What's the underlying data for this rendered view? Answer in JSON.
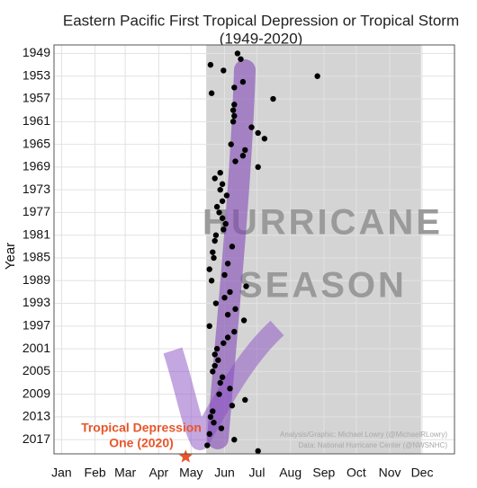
{
  "chart_data": {
    "type": "scatter",
    "title": [
      "Eastern Pacific First Tropical Depression or Tropical Storm",
      "(1949-2020)"
    ],
    "y_label": "Year",
    "x": [
      164,
      167,
      139,
      151,
      238,
      169,
      161,
      140,
      197,
      161,
      160,
      161,
      160,
      177,
      183,
      189,
      158,
      171,
      169,
      162,
      183,
      148,
      143,
      150,
      148,
      154,
      150,
      145,
      147,
      150,
      153,
      151,
      144,
      143,
      159,
      141,
      142,
      155,
      138,
      152,
      140,
      172,
      157,
      152,
      144,
      162,
      155,
      170,
      138,
      161,
      155,
      151,
      145,
      143,
      146,
      143,
      141,
      150,
      148,
      157,
      147,
      171,
      159,
      141,
      139,
      142,
      149,
      138,
      161,
      136,
      183
    ],
    "values": [
      1949,
      1950,
      1951,
      1952,
      1953,
      1954,
      1955,
      1956,
      1957,
      1958,
      1959,
      1960,
      1961,
      1962,
      1963,
      1964,
      1965,
      1966,
      1967,
      1968,
      1969,
      1970,
      1971,
      1972,
      1973,
      1974,
      1975,
      1976,
      1977,
      1978,
      1979,
      1980,
      1981,
      1982,
      1983,
      1984,
      1985,
      1986,
      1987,
      1988,
      1989,
      1990,
      1991,
      1992,
      1993,
      1994,
      1995,
      1996,
      1997,
      1998,
      1999,
      2000,
      2001,
      2002,
      2003,
      2004,
      2005,
      2006,
      2007,
      2008,
      2009,
      2010,
      2011,
      2012,
      2013,
      2014,
      2015,
      2016,
      2017,
      2018,
      2019
    ],
    "color": "#000000",
    "xlim": [
      -6,
      365
    ],
    "xticks": [
      {
        "value": 1,
        "label": "Jan"
      },
      {
        "value": 32,
        "label": "Feb"
      },
      {
        "value": 60,
        "label": "Mar"
      },
      {
        "value": 91,
        "label": "Apr"
      },
      {
        "value": 121,
        "label": "May"
      },
      {
        "value": 152,
        "label": "Jun"
      },
      {
        "value": 182,
        "label": "Jul"
      },
      {
        "value": 213,
        "label": "Aug"
      },
      {
        "value": 244,
        "label": "Sep"
      },
      {
        "value": 274,
        "label": "Oct"
      },
      {
        "value": 305,
        "label": "Nov"
      },
      {
        "value": 335,
        "label": "Dec"
      }
    ],
    "ylim": [
      1947.5,
      2019.5
    ],
    "y_inverted": true,
    "yticks": [
      1949,
      1953,
      1957,
      1961,
      1965,
      1969,
      1973,
      1977,
      1981,
      1985,
      1989,
      1993,
      1997,
      2001,
      2005,
      2009,
      2013,
      2017
    ],
    "grid": true,
    "shaded_span": {
      "x": [
        135,
        334
      ],
      "color": "#d4d4d4",
      "label": [
        "HURRICANE",
        "SEASON"
      ]
    },
    "highlight": {
      "x": 116,
      "y": 2020,
      "color": "#e8562a",
      "label": [
        "Tropical Depression",
        "One (2020)"
      ]
    },
    "credits": [
      "Analysis/Graphic: Michael Lowry (@MichaelRLowry)",
      "Data: National Hurricane Center (@NWSNHC)"
    ]
  }
}
